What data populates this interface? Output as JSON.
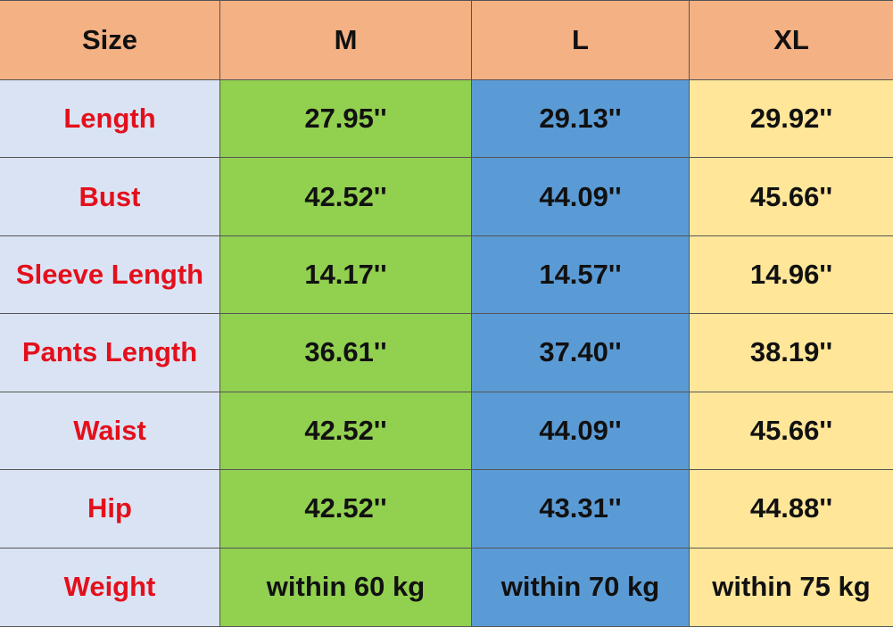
{
  "table": {
    "header": [
      "Size",
      "M",
      "L",
      "XL"
    ],
    "rows": [
      [
        "Length",
        "27.95''",
        "29.13''",
        "29.92''"
      ],
      [
        "Bust",
        "42.52''",
        "44.09''",
        "45.66''"
      ],
      [
        "Sleeve Length",
        "14.17''",
        "14.57''",
        "14.96''"
      ],
      [
        "Pants Length",
        "36.61''",
        "37.40''",
        "38.19''"
      ],
      [
        "Waist",
        "42.52''",
        "44.09''",
        "45.66''"
      ],
      [
        "Hip",
        "42.52''",
        "43.31''",
        "44.88''"
      ],
      [
        "Weight",
        "within 60 kg",
        "within 70 kg",
        "within 75 kg"
      ]
    ]
  }
}
